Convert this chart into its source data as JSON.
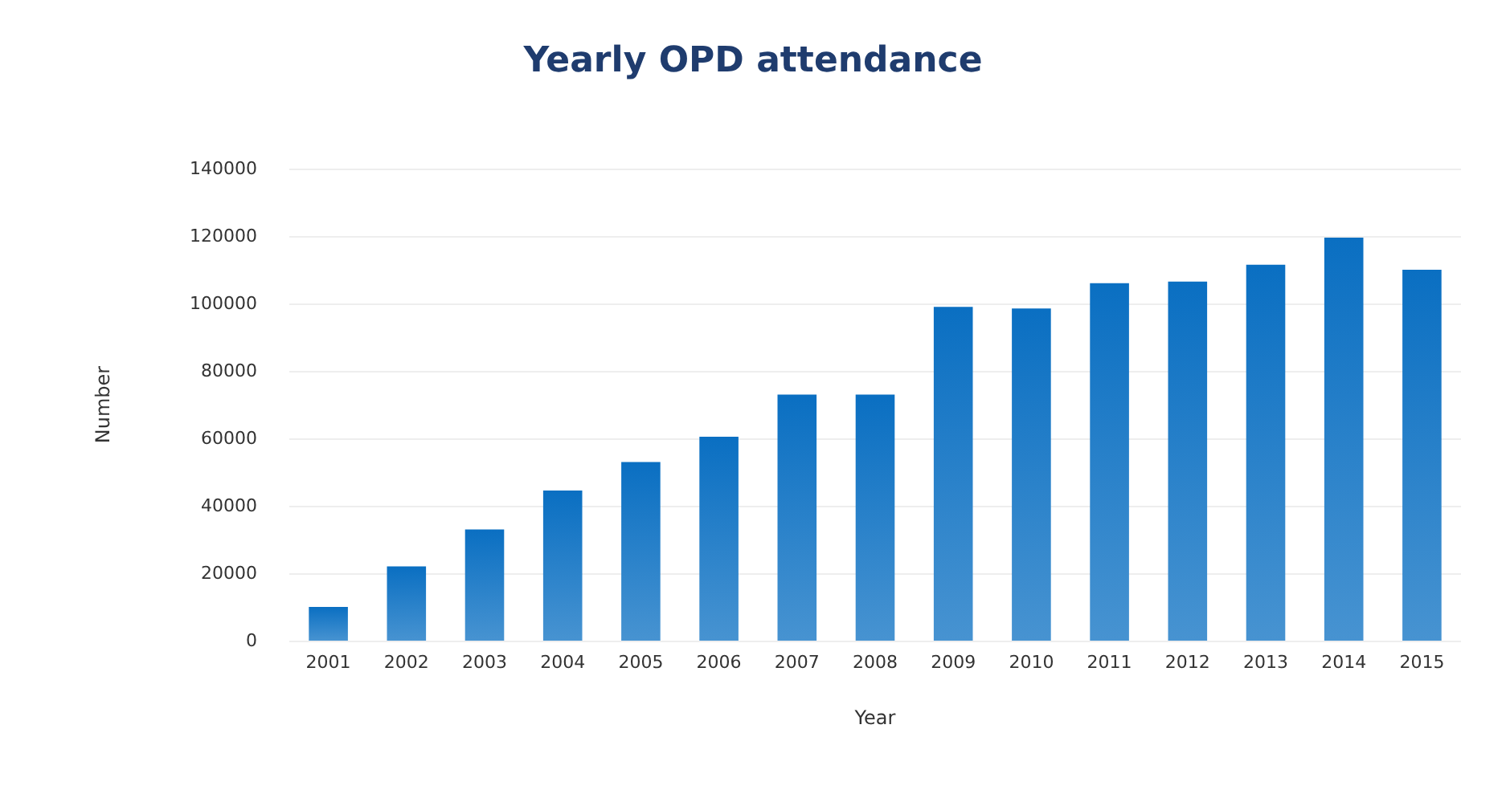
{
  "chart_data": {
    "type": "bar",
    "title": "Yearly OPD attendance",
    "xlabel": "Year",
    "ylabel": "Number",
    "categories": [
      "2001",
      "2002",
      "2003",
      "2004",
      "2005",
      "2006",
      "2007",
      "2008",
      "2009",
      "2010",
      "2011",
      "2012",
      "2013",
      "2014",
      "2015"
    ],
    "values": [
      10000,
      22000,
      33000,
      44500,
      53000,
      60500,
      73000,
      73000,
      99000,
      98500,
      106000,
      106500,
      111500,
      119500,
      110000
    ],
    "color": "#0a6fc2",
    "ylim": [
      0,
      140000
    ],
    "yticks": [
      0,
      20000,
      40000,
      60000,
      80000,
      100000,
      120000,
      140000
    ],
    "grid": "y"
  }
}
